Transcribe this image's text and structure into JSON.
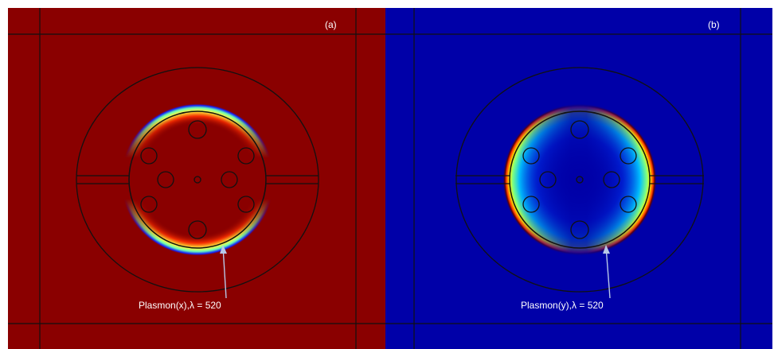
{
  "panels": [
    {
      "id": "a",
      "tag": "(a)",
      "annotation": "Plasmon(x),λ  =  520",
      "background_color": "#8a0000",
      "field_orientation": "x"
    },
    {
      "id": "b",
      "tag": "(b)",
      "annotation": "Plasmon(y),λ  =  520",
      "background_color": "#0000a8",
      "field_orientation": "y"
    }
  ]
}
